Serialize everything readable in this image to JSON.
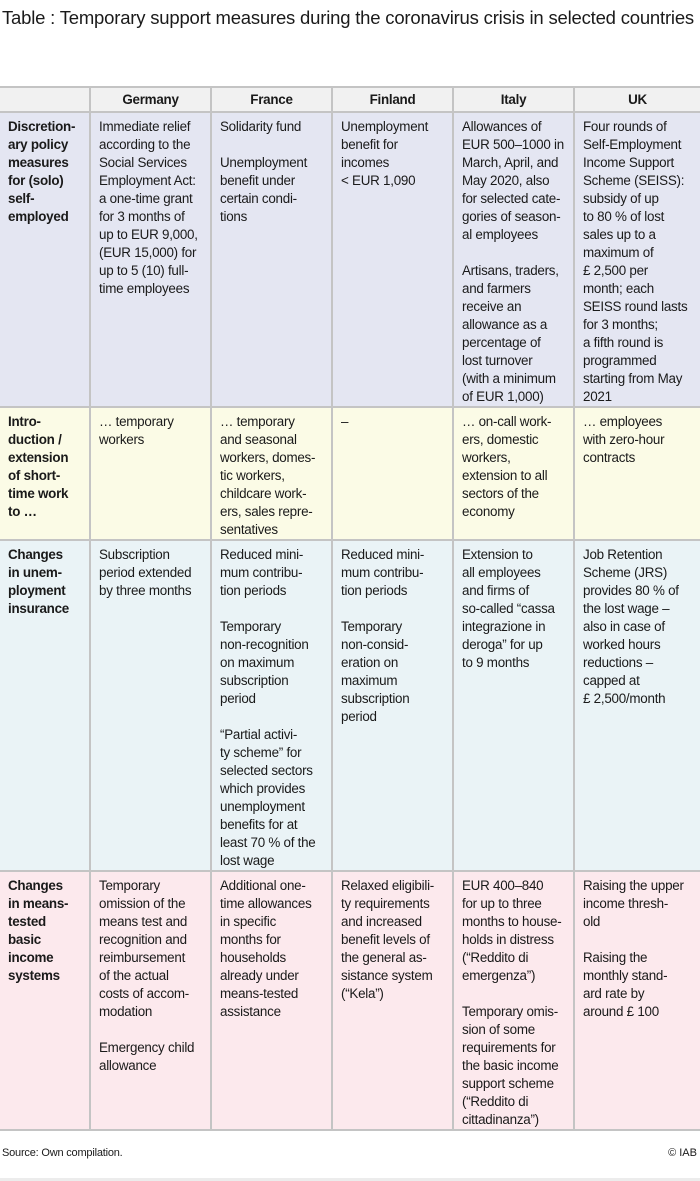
{
  "title": "Table : Temporary support measures during the coronavirus crisis in selected countries",
  "colors": {
    "header": "#f1f1f1",
    "row_selfemployed": "#e4e6f2",
    "row_shorttime": "#fbfbe6",
    "row_unemployment": "#eaf3f6",
    "row_basicincome": "#fce9ed",
    "border": "#c4c4c4"
  },
  "columns": [
    "",
    "Germany",
    "France",
    "Finland",
    "Italy",
    "UK"
  ],
  "rows": [
    {
      "label": "Discretion-\nary policy\nmeasures\nfor (solo)\nself-\nemployed",
      "cells": [
        "Immediate relief\naccording to the\nSocial Services\nEmployment Act:\na one-time grant\nfor 3 months of\nup to EUR 9,000,\n(EUR 15,000) for\nup to 5 (10) full-\ntime employees",
        "Solidarity fund\n\nUnemployment\nbenefit under\ncertain condi-\ntions",
        "Unemployment\nbenefit for\nincomes\n< EUR 1,090",
        "Allowances of\nEUR 500–1000 in\nMarch, April, and\nMay 2020, also\nfor selected cate-\ngories of season-\nal employees\n\nArtisans, traders,\nand farmers\nreceive an\nallowance as a\npercentage of\nlost turnover\n(with a minimum\nof EUR 1,000)",
        "Four rounds of\nSelf-Employment\nIncome Support\nScheme (SEISS):\nsubsidy of up\nto 80 % of lost\nsales up to a\nmaximum of\n£ 2,500 per\nmonth; each\nSEISS round lasts\nfor 3 months;\na fifth round is\nprogrammed\nstarting from May\n2021"
      ]
    },
    {
      "label": "Intro-\nduction /\nextension\nof short-\ntime work\nto …",
      "cells": [
        "… temporary\nworkers",
        "… temporary\nand seasonal\nworkers, domes-\ntic workers,\nchildcare work-\ners, sales repre-\nsentatives",
        "–",
        "… on-call work-\ners, domestic\nworkers,\nextension to all\nsectors of the\neconomy",
        "… employees\nwith zero-hour\ncontracts"
      ]
    },
    {
      "label": "Changes\nin unem-\nployment\ninsurance",
      "cells": [
        "Subscription\nperiod extended\nby three months",
        "Reduced mini-\nmum contribu-\ntion periods\n\nTemporary\nnon-recognition\non maximum\nsubscription\nperiod\n\n“Partial activi-\nty scheme” for\nselected sectors\nwhich provides\nunemployment\nbenefits for at\nleast 70 % of the\nlost wage",
        "Reduced mini-\nmum contribu-\ntion periods\n\nTemporary\nnon-consid-\neration on\nmaximum\nsubscription\nperiod",
        "Extension to\nall employees\nand firms of\nso-called “cassa\nintegrazione in\nderoga” for up\nto 9 months",
        "Job Retention\nScheme (JRS)\nprovides 80 % of\nthe lost wage –\nalso in case of\nworked hours\nreductions –\ncapped at\n£ 2,500/month"
      ]
    },
    {
      "label": "Changes\nin means-\ntested\nbasic\nincome\nsystems",
      "cells": [
        "Temporary\nomission of the\nmeans test and\nrecognition and\nreimbursement\nof the actual\ncosts of accom-\nmodation\n\nEmergency child\nallowance",
        "Additional one-\ntime allowances\nin specific\nmonths for\nhouseholds\nalready under\nmeans-tested\nassistance",
        "Relaxed eligibili-\nty requirements\nand increased\nbenefit levels of\nthe general as-\nsistance system\n(“Kela”)",
        "EUR 400–840\nfor up to three\nmonths to house-\nholds in distress\n(“Reddito di\nemergenza”)\n\nTemporary omis-\nsion of some\nrequirements for\nthe basic income\nsupport scheme\n(“Reddito di\ncittadinanza”)",
        "Raising the upper\nincome thresh-\nold\n\nRaising the\nmonthly stand-\nard rate by\naround £ 100"
      ]
    }
  ],
  "footer": {
    "source": "Source: Own compilation.",
    "copyright": "© IAB"
  }
}
